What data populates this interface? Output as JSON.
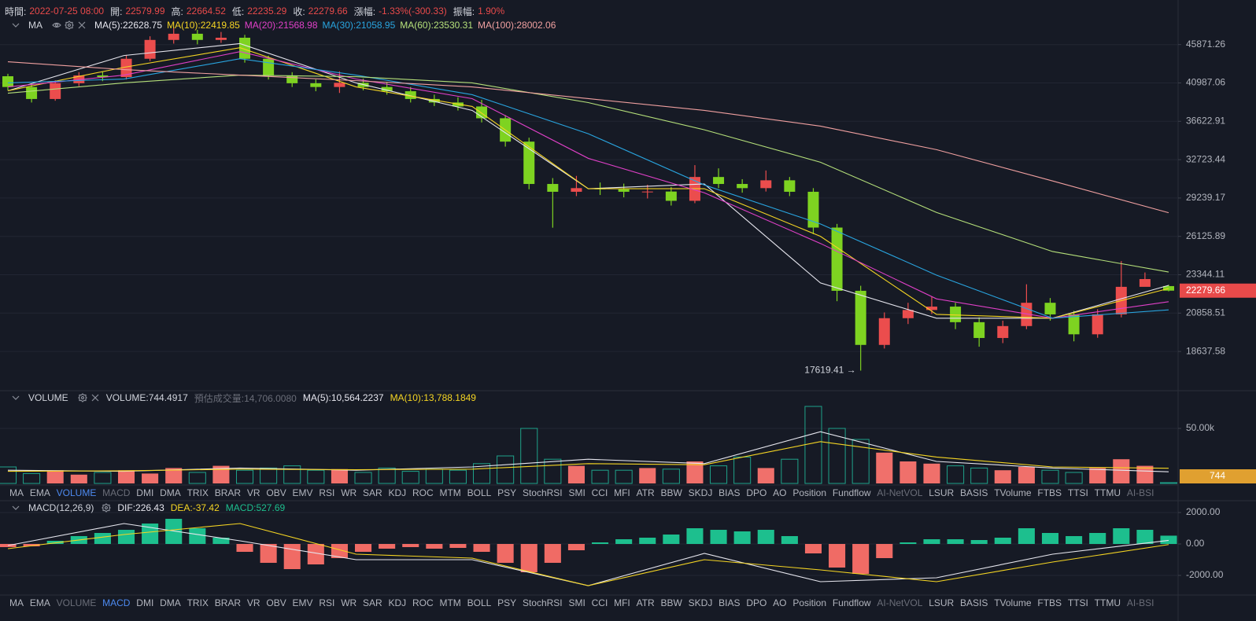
{
  "chart_data": [
    {
      "type": "candlestick",
      "title": "MA",
      "info": [
        {
          "label": "時間:",
          "value": "2022-07-25 08:00"
        },
        {
          "label": "開:",
          "value": "22579.99"
        },
        {
          "label": "高:",
          "value": "22664.52"
        },
        {
          "label": "低:",
          "value": "22235.29"
        },
        {
          "label": "收:",
          "value": "22279.66"
        },
        {
          "label": "漲幅:",
          "value": "-1.33%(-300.33)"
        },
        {
          "label": "振幅:",
          "value": "1.90%"
        }
      ],
      "open": [
        41800,
        40500,
        39100,
        40950,
        41900,
        41700,
        44000,
        46500,
        47350,
        46500,
        46800,
        44000,
        41900,
        40950,
        40500,
        41000,
        40500,
        40000,
        39100,
        38700,
        38250,
        36950,
        34500,
        30470,
        29780,
        30100,
        30000,
        29780,
        29800,
        29000,
        31100,
        30470,
        30100,
        30800,
        29780,
        26810,
        22270,
        19000,
        20550,
        21050,
        21260,
        20310,
        19390,
        20080,
        21500,
        20780,
        19600,
        20780,
        22530,
        22579.99
      ],
      "high": [
        42100,
        40900,
        41300,
        42300,
        42400,
        44500,
        47000,
        48200,
        47900,
        47600,
        47200,
        44400,
        42300,
        41400,
        42400,
        41500,
        41100,
        40500,
        39600,
        39300,
        39000,
        37300,
        34900,
        31000,
        31200,
        30600,
        30500,
        30400,
        30200,
        32200,
        31900,
        30900,
        31700,
        31100,
        30100,
        27100,
        22600,
        20900,
        21500,
        21900,
        21500,
        20600,
        20400,
        22700,
        21800,
        21000,
        21100,
        24300,
        23500,
        22664.52
      ],
      "low": [
        40100,
        38700,
        38900,
        40600,
        41200,
        41400,
        43700,
        46000,
        45900,
        46100,
        43500,
        41400,
        40500,
        40000,
        39800,
        40100,
        39600,
        38700,
        38300,
        37800,
        36500,
        34000,
        30000,
        26800,
        29400,
        29500,
        29300,
        29200,
        28600,
        28800,
        30100,
        29700,
        29800,
        29400,
        26300,
        21600,
        17619.41,
        18800,
        20200,
        20800,
        19900,
        18900,
        19100,
        19900,
        20400,
        19200,
        19400,
        20600,
        22600,
        22235.29
      ],
      "close": [
        40500,
        39100,
        40950,
        41900,
        41700,
        44000,
        46500,
        47350,
        46500,
        46800,
        44000,
        41900,
        40950,
        40500,
        41000,
        40500,
        40000,
        39100,
        38700,
        38250,
        36950,
        34500,
        30470,
        29780,
        30100,
        30000,
        29780,
        29800,
        29000,
        31100,
        30470,
        30100,
        30800,
        29780,
        26810,
        22270,
        19000,
        20550,
        21050,
        21260,
        20310,
        19390,
        20080,
        21500,
        20780,
        19600,
        20780,
        22530,
        23050,
        22279.66
      ],
      "up_color": "#eb4d4d",
      "down_color": "#7ed321",
      "series": [
        {
          "name": "MA(5):22628.75",
          "color": "#e6e6ee",
          "values": [
            40050,
            44420,
            46000,
            40990,
            37810,
            30050,
            30470,
            22790,
            20550,
            20550,
            22628.75
          ]
        },
        {
          "name": "MA(10):22419.85",
          "color": "#f5d523",
          "values": [
            40050,
            42910,
            45450,
            40510,
            38250,
            30050,
            30050,
            26130,
            20780,
            20550,
            22419.85
          ]
        },
        {
          "name": "MA(20):21568.98",
          "color": "#e040c8",
          "values": [
            40510,
            41940,
            44930,
            41460,
            39140,
            32850,
            29690,
            25590,
            21750,
            20550,
            21568.98
          ]
        },
        {
          "name": "MA(30):21058.95",
          "color": "#29a5e0",
          "values": [
            40990,
            41460,
            44000,
            41940,
            39600,
            35310,
            30380,
            27100,
            23320,
            20550,
            21058.95
          ]
        },
        {
          "name": "MA(60):23530.31",
          "color": "#b5e07a",
          "values": [
            39770,
            40990,
            41940,
            41740,
            40990,
            38690,
            35720,
            32480,
            28030,
            24990,
            23530.31
          ]
        },
        {
          "name": "MA(100):28002.06",
          "color": "#f0a0a0",
          "values": [
            43610,
            42620,
            41940,
            41260,
            40510,
            39140,
            37810,
            36110,
            33700,
            30740,
            28002.06
          ]
        }
      ],
      "log": true,
      "ylim": [
        16650,
        52280
      ],
      "yticks": [
        45871.26,
        40987.06,
        36622.91,
        32723.44,
        29239.17,
        26125.89,
        23344.11,
        20858.51,
        18637.58
      ],
      "annotation": "17619.41 →"
    },
    {
      "type": "bar",
      "title": "VOLUME",
      "series": [
        {
          "name": "VOLUME:744.4917",
          "kind": "bar",
          "up_color": "#f0706b",
          "down_color": "#1fa38a",
          "values": [
            15000,
            9000,
            12000,
            8000,
            10000,
            12000,
            9000,
            14000,
            10000,
            16000,
            12000,
            14000,
            16000,
            12000,
            13000,
            10000,
            14000,
            11000,
            13000,
            12000,
            18000,
            25000,
            50000,
            22000,
            16000,
            12000,
            12000,
            14000,
            13000,
            20000,
            16000,
            24000,
            14000,
            22000,
            70000,
            50000,
            40000,
            28000,
            20000,
            18000,
            16000,
            14000,
            12000,
            15000,
            12000,
            10000,
            14000,
            22000,
            16000,
            744.4917
          ]
        },
        {
          "name": "MA(5):10,564.2237",
          "color": "#e6e6ee",
          "values": [
            12000,
            11000,
            14000,
            12000,
            15000,
            22000,
            18000,
            47000,
            20000,
            14000,
            10564.2237
          ]
        },
        {
          "name": "MA(10):13,788.1849",
          "color": "#f5d523",
          "values": [
            11000,
            11500,
            13000,
            12500,
            13000,
            18000,
            17000,
            38000,
            24000,
            15000,
            13788.1849
          ]
        }
      ],
      "estimate": "預估成交量:14,706.0080",
      "last_label": "744",
      "ylim": [
        0,
        83570
      ],
      "yticks": [
        {
          "value": 50000,
          "label": "50.00k"
        }
      ]
    },
    {
      "type": "macd",
      "title": "MACD(12,26,9)",
      "series": [
        {
          "name": "DIF:226.43",
          "color": "#e6e6ee",
          "values": [
            -100,
            1300,
            200,
            -1000,
            -1000,
            -2650,
            -600,
            -2400,
            -2150,
            -650,
            226.43
          ]
        },
        {
          "name": "DEA:-37.42",
          "color": "#f5d523",
          "values": [
            -300,
            600,
            1300,
            -650,
            -900,
            -2650,
            -1000,
            -1650,
            -2400,
            -1150,
            -37.42
          ]
        },
        {
          "name": "MACD:527.69",
          "kind": "bar",
          "up_color": "#1dbf8e",
          "down_color": "#f06b65",
          "values": [
            -200,
            -150,
            200,
            500,
            700,
            900,
            1300,
            1600,
            1000,
            400,
            -500,
            -1200,
            -1600,
            -1300,
            -900,
            -500,
            -300,
            -200,
            -300,
            -250,
            -500,
            -1200,
            -1800,
            -1200,
            -400,
            100,
            300,
            400,
            600,
            1000,
            900,
            800,
            900,
            500,
            -600,
            -1500,
            -1900,
            -900,
            100,
            300,
            300,
            250,
            400,
            1000,
            700,
            500,
            700,
            1000,
            900,
            527.69
          ]
        }
      ],
      "ylim": [
        -3150,
        2700
      ],
      "yticks": [
        {
          "value": 2000,
          "label": "2000.00"
        },
        {
          "value": 0,
          "label": "0.00"
        },
        {
          "value": -2000,
          "label": "-2000.00"
        }
      ]
    }
  ],
  "toolbar": {
    "items": [
      "MA",
      "EMA",
      "VOLUME",
      "MACD",
      "DMI",
      "DMA",
      "TRIX",
      "BRAR",
      "VR",
      "OBV",
      "EMV",
      "RSI",
      "WR",
      "SAR",
      "KDJ",
      "ROC",
      "MTM",
      "BOLL",
      "PSY",
      "StochRSI",
      "SMI",
      "CCI",
      "MFI",
      "ATR",
      "BBW",
      "SKDJ",
      "BIAS",
      "DPO",
      "AO",
      "Position",
      "Fundflow",
      "AI-NetVOL",
      "LSUR",
      "BASIS",
      "TVolume",
      "FTBS",
      "TTSI",
      "TTMU",
      "AI-BSI"
    ],
    "rows": [
      {
        "active": "VOLUME",
        "dimmed": [
          "MACD",
          "AI-NetVOL",
          "AI-BSI"
        ]
      },
      {
        "active": "MACD",
        "dimmed": [
          "VOLUME",
          "AI-NetVOL",
          "AI-BSI"
        ]
      }
    ]
  }
}
